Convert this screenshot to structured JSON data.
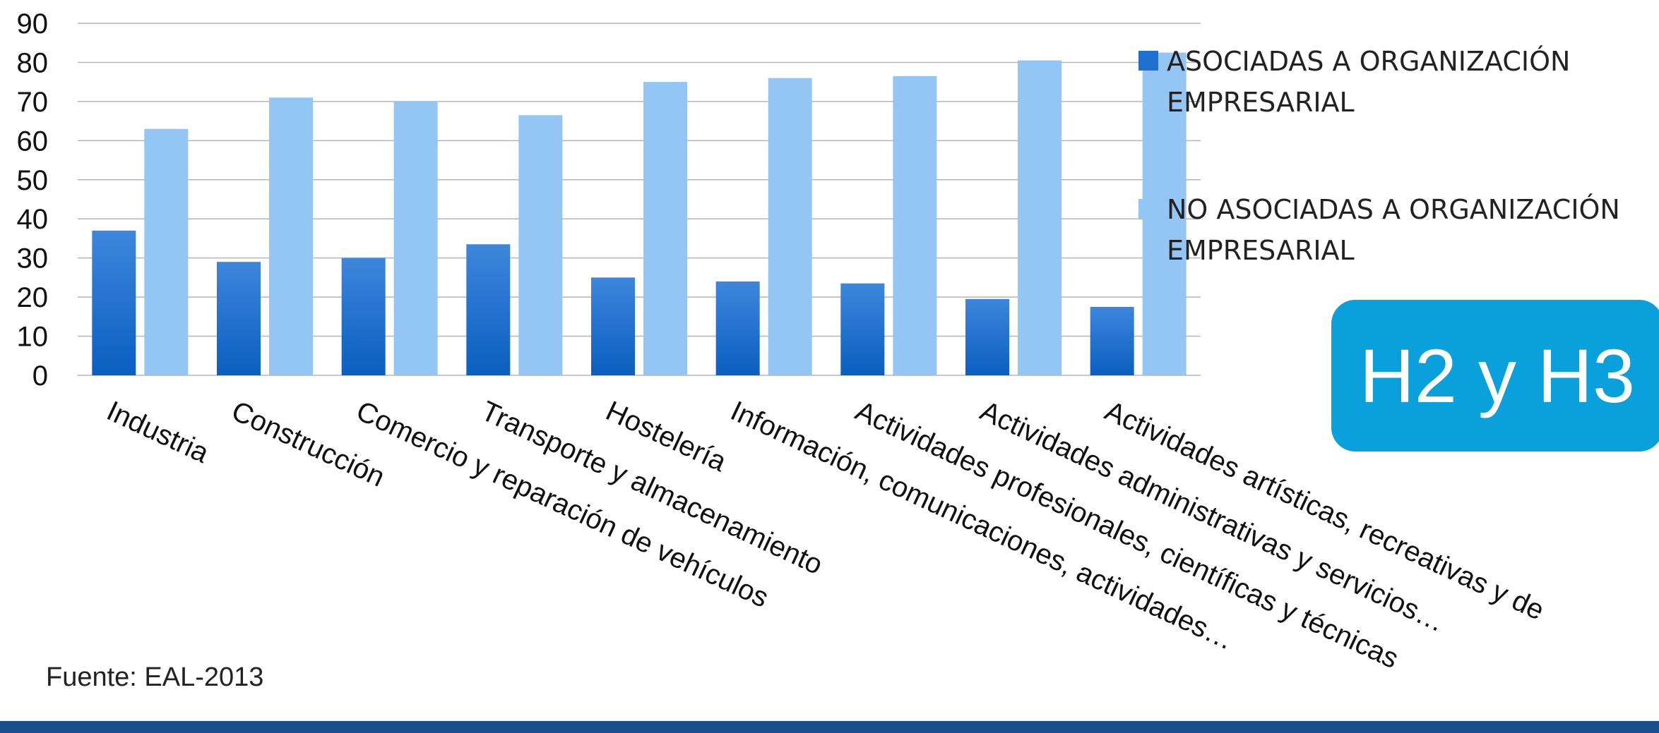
{
  "chart_data": {
    "type": "bar",
    "categories": [
      "Industria",
      "Construcción",
      "Comercio y reparación de vehículos",
      "Transporte y almacenamiento",
      "Hostelería",
      "Información, comunicaciones, actividades…",
      "Actividades profesionales, científicas y técnicas",
      "Actividades administrativas y servicios…",
      "Actividades artísticas, recreativas y de"
    ],
    "series": [
      {
        "name": "ASOCIADAS A ORGANIZACIÓN EMPRESARIAL",
        "values": [
          37,
          29,
          30,
          33.5,
          25,
          24,
          23.5,
          19.5,
          17.5
        ],
        "color": "#1e6fd0"
      },
      {
        "name": "NO ASOCIADAS A ORGANIZACIÓN EMPRESARIAL",
        "values": [
          63,
          71,
          70,
          66.5,
          75,
          76,
          76.5,
          80.5,
          82.5
        ],
        "color": "#93c6f4"
      }
    ],
    "ylim": [
      0,
      90
    ],
    "yticks": [
      0,
      10,
      20,
      30,
      40,
      50,
      60,
      70,
      80,
      90
    ],
    "grid": true,
    "legend": "right",
    "title": "",
    "xlabel": "",
    "ylabel": ""
  },
  "legend": {
    "item1": "ASOCIADAS A ORGANIZACIÓN EMPRESARIAL",
    "item2": "NO ASOCIADAS A ORGANIZACIÓN EMPRESARIAL"
  },
  "badge": "H2 y H3",
  "source": "Fuente: EAL-2013"
}
